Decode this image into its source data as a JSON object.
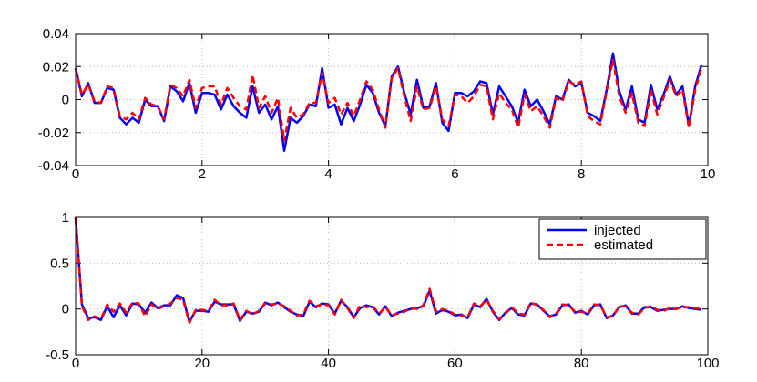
{
  "chart_data": [
    {
      "type": "line",
      "x": [
        0,
        0.1,
        0.2,
        0.3,
        0.4,
        0.5,
        0.6,
        0.7,
        0.8,
        0.9,
        1,
        1.1,
        1.2,
        1.3,
        1.4,
        1.5,
        1.6,
        1.7,
        1.8,
        1.9,
        2,
        2.1,
        2.2,
        2.3,
        2.4,
        2.5,
        2.6,
        2.7,
        2.8,
        2.9,
        3,
        3.1,
        3.2,
        3.3,
        3.4,
        3.5,
        3.6,
        3.7,
        3.8,
        3.9,
        4,
        4.1,
        4.2,
        4.3,
        4.4,
        4.5,
        4.6,
        4.7,
        4.8,
        4.9,
        5,
        5.1,
        5.2,
        5.3,
        5.4,
        5.5,
        5.6,
        5.7,
        5.8,
        5.9,
        6,
        6.1,
        6.2,
        6.3,
        6.4,
        6.5,
        6.6,
        6.7,
        6.8,
        6.9,
        7,
        7.1,
        7.2,
        7.3,
        7.4,
        7.5,
        7.6,
        7.7,
        7.8,
        7.9,
        8,
        8.1,
        8.2,
        8.3,
        8.4,
        8.5,
        8.6,
        8.7,
        8.8,
        8.9,
        9,
        9.1,
        9.2,
        9.3,
        9.4,
        9.5,
        9.6,
        9.7,
        9.8,
        9.9
      ],
      "series": [
        {
          "color": "#0000ff",
          "dash": false,
          "values": [
            0.019,
            0.002,
            0.01,
            -0.002,
            -0.002,
            0.007,
            0.006,
            -0.011,
            -0.015,
            -0.011,
            -0.014,
            0.0,
            -0.004,
            -0.004,
            -0.013,
            0.008,
            0.005,
            -0.001,
            0.01,
            -0.008,
            0.004,
            0.004,
            0.003,
            -0.006,
            0.003,
            -0.004,
            -0.008,
            -0.011,
            0.008,
            -0.008,
            -0.003,
            -0.012,
            -0.004,
            -0.031,
            -0.011,
            -0.014,
            -0.01,
            -0.003,
            -0.004,
            0.019,
            -0.005,
            -0.003,
            -0.015,
            -0.005,
            -0.013,
            -0.003,
            0.009,
            0.004,
            -0.008,
            -0.016,
            0.014,
            0.02,
            0.004,
            -0.009,
            0.012,
            -0.005,
            -0.004,
            0.01,
            -0.014,
            -0.019,
            0.004,
            0.004,
            0.002,
            0.005,
            0.011,
            0.01,
            -0.009,
            0.008,
            0.002,
            -0.004,
            -0.014,
            0.006,
            -0.004,
            0.0,
            -0.007,
            -0.015,
            0.002,
            0.0,
            0.012,
            0.008,
            0.01,
            -0.008,
            -0.01,
            -0.013,
            0.006,
            0.028,
            0.005,
            -0.006,
            0.008,
            -0.012,
            -0.014,
            0.009,
            -0.006,
            0.003,
            0.014,
            0.003,
            0.008,
            -0.016,
            0.008,
            0.021
          ]
        },
        {
          "color": "#ff0000",
          "dash": true,
          "values": [
            0.019,
            0.003,
            0.009,
            -0.001,
            -0.002,
            0.008,
            0.007,
            -0.01,
            -0.012,
            -0.008,
            -0.012,
            0.001,
            -0.003,
            -0.004,
            -0.012,
            0.009,
            0.007,
            0.002,
            0.012,
            -0.005,
            0.007,
            0.008,
            0.008,
            -0.003,
            0.007,
            0.001,
            -0.004,
            -0.006,
            0.015,
            -0.005,
            0.002,
            -0.008,
            0.001,
            -0.025,
            -0.005,
            -0.011,
            -0.009,
            -0.002,
            -0.002,
            0.016,
            -0.002,
            0.001,
            -0.009,
            -0.002,
            -0.01,
            0.0,
            0.011,
            0.006,
            -0.006,
            -0.017,
            0.013,
            0.019,
            0.002,
            -0.013,
            0.008,
            -0.006,
            -0.005,
            0.008,
            -0.012,
            -0.016,
            0.003,
            0.002,
            -0.002,
            0.002,
            0.009,
            0.008,
            -0.012,
            0.004,
            -0.002,
            -0.006,
            -0.017,
            0.003,
            -0.007,
            -0.004,
            -0.01,
            -0.017,
            0.001,
            -0.001,
            0.011,
            0.009,
            0.011,
            -0.01,
            -0.013,
            -0.015,
            0.005,
            0.024,
            0.002,
            -0.008,
            0.004,
            -0.014,
            -0.016,
            0.006,
            -0.009,
            0.001,
            0.012,
            0.002,
            0.006,
            -0.017,
            0.006,
            0.019
          ]
        }
      ],
      "xlim": [
        0,
        10
      ],
      "xticks": [
        0,
        2,
        4,
        6,
        8,
        10
      ],
      "ylim": [
        -0.04,
        0.04
      ],
      "yticks": [
        -0.04,
        -0.02,
        0,
        0.02,
        0.04
      ],
      "grid": true
    },
    {
      "type": "line",
      "x": [
        0,
        1,
        2,
        3,
        4,
        5,
        6,
        7,
        8,
        9,
        10,
        11,
        12,
        13,
        14,
        15,
        16,
        17,
        18,
        19,
        20,
        21,
        22,
        23,
        24,
        25,
        26,
        27,
        28,
        29,
        30,
        31,
        32,
        33,
        34,
        35,
        36,
        37,
        38,
        39,
        40,
        41,
        42,
        43,
        44,
        45,
        46,
        47,
        48,
        49,
        50,
        51,
        52,
        53,
        54,
        55,
        56,
        57,
        58,
        59,
        60,
        61,
        62,
        63,
        64,
        65,
        66,
        67,
        68,
        69,
        70,
        71,
        72,
        73,
        74,
        75,
        76,
        77,
        78,
        79,
        80,
        81,
        82,
        83,
        84,
        85,
        86,
        87,
        88,
        89,
        90,
        91,
        92,
        93,
        94,
        95,
        96,
        97,
        98,
        99
      ],
      "series": [
        {
          "name": "injected",
          "color": "#0000ff",
          "dash": false,
          "values": [
            1.0,
            0.05,
            -0.1,
            -0.09,
            -0.12,
            0.03,
            -0.09,
            0.04,
            -0.07,
            0.06,
            0.05,
            -0.04,
            0.07,
            0.01,
            0.04,
            0.04,
            0.15,
            0.12,
            -0.14,
            -0.02,
            -0.02,
            -0.03,
            0.08,
            0.05,
            0.05,
            0.05,
            -0.13,
            -0.03,
            -0.05,
            -0.03,
            0.07,
            0.04,
            0.07,
            0.02,
            -0.03,
            -0.06,
            -0.08,
            0.08,
            0.02,
            0.06,
            0.05,
            -0.05,
            0.09,
            0.02,
            -0.09,
            0.01,
            0.04,
            0.02,
            -0.06,
            0.03,
            -0.08,
            -0.04,
            -0.02,
            0.0,
            0.01,
            0.03,
            0.2,
            -0.05,
            -0.01,
            -0.03,
            -0.07,
            -0.06,
            -0.1,
            0.05,
            0.02,
            0.11,
            -0.03,
            -0.12,
            -0.04,
            0.01,
            -0.06,
            -0.07,
            0.06,
            0.05,
            -0.02,
            -0.08,
            -0.06,
            0.04,
            0.05,
            -0.04,
            -0.02,
            -0.06,
            0.04,
            0.05,
            -0.1,
            -0.07,
            0.02,
            0.04,
            -0.05,
            -0.05,
            0.02,
            0.02,
            -0.02,
            -0.01,
            0.0,
            0.0,
            0.03,
            0.01,
            0.0,
            -0.01
          ]
        },
        {
          "name": "estimated",
          "color": "#ff0000",
          "dash": true,
          "values": [
            1.0,
            0.03,
            -0.12,
            -0.08,
            -0.11,
            0.05,
            -0.03,
            0.06,
            -0.04,
            0.07,
            0.06,
            -0.08,
            0.05,
            0.0,
            0.03,
            0.06,
            0.12,
            0.1,
            -0.15,
            -0.01,
            -0.01,
            -0.02,
            0.1,
            0.04,
            0.04,
            0.06,
            -0.12,
            -0.02,
            -0.06,
            -0.02,
            0.06,
            0.05,
            0.06,
            0.03,
            -0.02,
            -0.07,
            -0.06,
            0.09,
            0.03,
            0.05,
            0.04,
            -0.06,
            0.1,
            0.01,
            -0.1,
            0.04,
            0.02,
            0.03,
            -0.05,
            0.02,
            -0.07,
            -0.05,
            -0.03,
            0.01,
            0.0,
            0.04,
            0.22,
            -0.03,
            0.0,
            -0.02,
            -0.06,
            -0.07,
            -0.09,
            0.06,
            0.03,
            0.1,
            -0.02,
            -0.11,
            -0.05,
            0.02,
            -0.05,
            -0.06,
            0.07,
            0.04,
            -0.01,
            -0.09,
            -0.05,
            0.05,
            0.04,
            -0.03,
            -0.03,
            -0.05,
            0.05,
            0.04,
            -0.09,
            -0.08,
            0.03,
            0.03,
            -0.04,
            -0.06,
            0.01,
            0.03,
            -0.01,
            -0.02,
            0.01,
            0.0,
            0.02,
            0.02,
            0.01,
            0.0
          ]
        }
      ],
      "xlim": [
        0,
        100
      ],
      "xticks": [
        0,
        20,
        40,
        60,
        80,
        100
      ],
      "ylim": [
        -0.5,
        1
      ],
      "yticks": [
        -0.5,
        0,
        0.5,
        1
      ],
      "grid": true,
      "legend": "northeast"
    }
  ]
}
